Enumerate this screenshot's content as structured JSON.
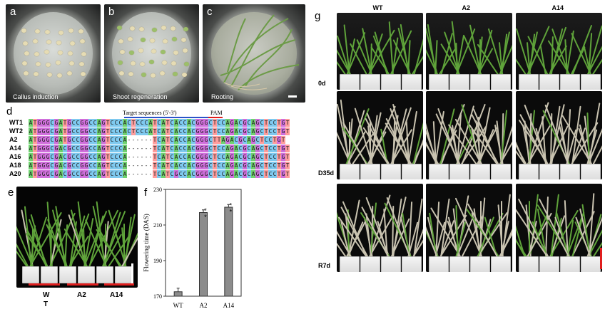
{
  "panels": {
    "a": {
      "letter": "a",
      "caption": "Callus induction"
    },
    "b": {
      "letter": "b",
      "caption": "Shoot regeneration"
    },
    "c": {
      "letter": "c",
      "caption": "Rooting"
    },
    "d": {
      "letter": "d"
    },
    "e": {
      "letter": "e"
    },
    "f": {
      "letter": "f"
    },
    "g": {
      "letter": "g"
    }
  },
  "alignment": {
    "target_label": "Target sequences (5'-3')",
    "pam_label": "PAM",
    "rows": [
      {
        "name": "WT1",
        "seq": "ATGGGCGATGCCGGCCAGTCCCACTCCCATCATCACCACGGGCTCCAGACGCAGCTCCTGT"
      },
      {
        "name": "WT2",
        "seq": "ATGGGCGATGCCGGCCAGTCCCACTCCCATCATCACCACGGGCTCCAGACGCAGCTCCTGT"
      },
      {
        "name": "A2",
        "seq": "ATGGGCGATGCCGGCCAGTCCCA------TCATCACCACGGGCTTAGACGCAGCTCCTGT"
      },
      {
        "name": "A14",
        "seq": "ATGGGCGACGCCGGCCAGTCCCA------TCATCACCACGGGCTCCAGACGCAGCTCCTGT"
      },
      {
        "name": "A16",
        "seq": "ATGGGCGACGCCGGCCAGTCCCA------TCATCACCACGGGCTCCAGACGCAGCTCCTGT"
      },
      {
        "name": "A18",
        "seq": "ATGGGCGACGCCGGCCAGTCCCA------TCATCACCACGGGCTCCAGACGCAGCTCCTGT"
      },
      {
        "name": "A20",
        "seq": "ATGGGCGACGCCGGCCAGTCCCA------TCATCGCCACGGGCTCCAGACGCAGCTCCTGT"
      }
    ]
  },
  "panel_e_labels": {
    "wt_line1": "W",
    "wt_line2": "T",
    "a2": "A2",
    "a14": "A14"
  },
  "chart_data": {
    "type": "bar",
    "categories": [
      "WT",
      "A2",
      "A14"
    ],
    "values": [
      172.5,
      217,
      220
    ],
    "errors": [
      2,
      1.5,
      1.5
    ],
    "significance": [
      "",
      "**",
      "**"
    ],
    "ylabel": "Flowering time (DAS)",
    "ylim": [
      170,
      230
    ],
    "yticks": [
      170,
      190,
      210,
      230
    ]
  },
  "panel_g": {
    "columns": [
      "WT",
      "A2",
      "A14"
    ],
    "rows": [
      "0d",
      "D35d",
      "R7d"
    ]
  },
  "colors": {
    "A": "#6fd26f",
    "T": "#ff9c9c",
    "G": "#d06fdc",
    "C": "#7ec9ef",
    "mark": "#e01e1e"
  }
}
